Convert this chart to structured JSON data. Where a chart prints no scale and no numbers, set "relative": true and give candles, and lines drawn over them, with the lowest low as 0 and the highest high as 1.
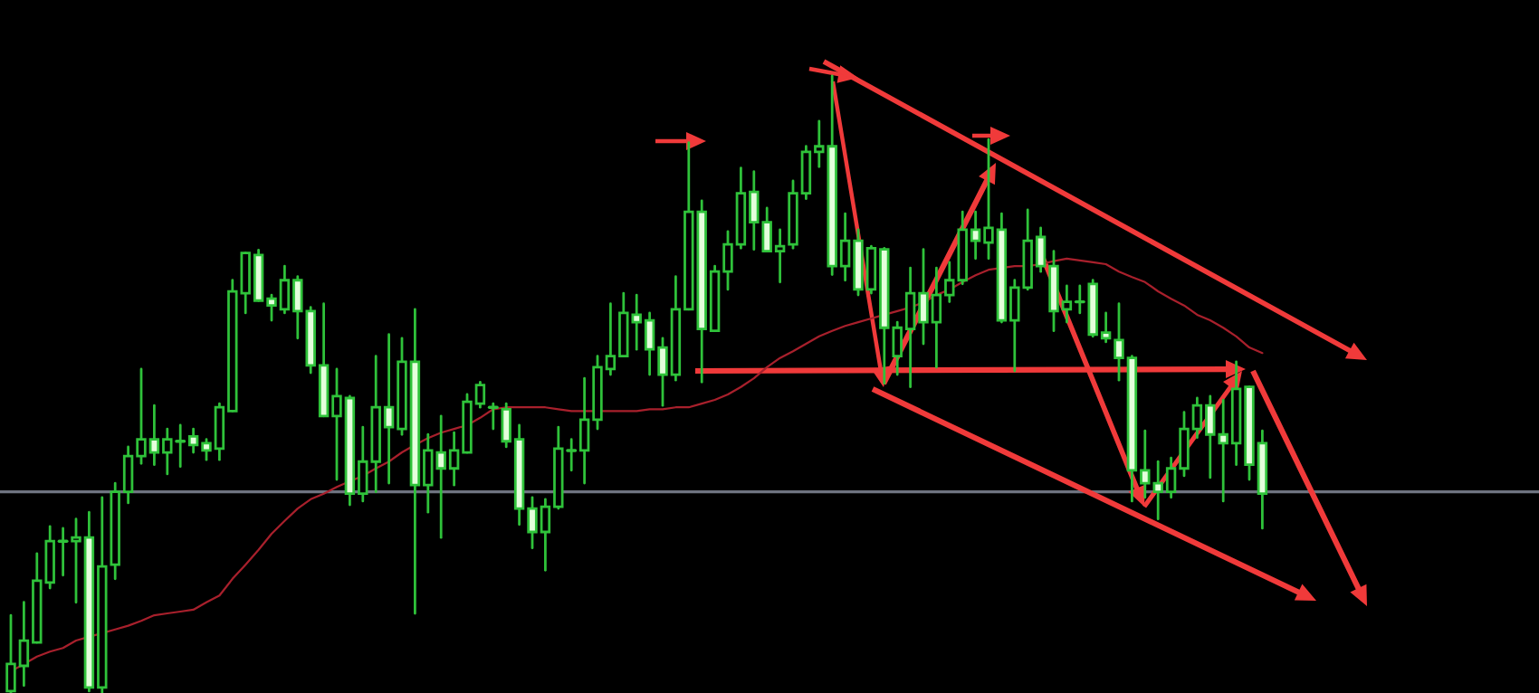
{
  "chart_data": {
    "type": "candlestick",
    "relative": true,
    "categories": [
      null,
      null,
      null,
      null,
      null,
      null,
      null,
      null,
      null,
      null,
      null,
      null,
      null,
      null,
      null,
      null,
      null,
      null,
      null,
      null,
      null,
      null,
      null,
      null,
      null,
      null,
      null,
      null,
      null,
      null,
      null,
      null,
      null,
      null,
      null,
      null,
      null,
      null,
      null,
      null,
      null,
      null,
      null,
      null,
      null,
      null,
      null,
      null,
      null,
      null,
      null,
      null,
      null,
      null,
      null,
      null,
      null,
      null,
      null,
      null,
      null,
      null,
      null,
      null,
      null,
      null,
      null,
      null,
      null,
      null,
      null,
      null,
      null,
      null,
      null,
      null,
      null,
      null,
      null,
      null,
      null,
      null,
      null,
      null,
      null,
      null,
      null,
      null,
      null,
      null,
      null,
      null,
      null,
      null,
      null,
      null,
      null
    ],
    "ohlc": [
      [
        0.003,
        0.126,
        0.0,
        0.047
      ],
      [
        0.044,
        0.147,
        0.012,
        0.085
      ],
      [
        0.082,
        0.226,
        0.082,
        0.182
      ],
      [
        0.179,
        0.27,
        0.17,
        0.246
      ],
      [
        0.246,
        0.267,
        0.191,
        0.246
      ],
      [
        0.246,
        0.282,
        0.147,
        0.252
      ],
      [
        0.252,
        0.293,
        0.003,
        0.009
      ],
      [
        0.009,
        0.317,
        0.0,
        0.205
      ],
      [
        0.208,
        0.34,
        0.185,
        0.326
      ],
      [
        0.326,
        0.399,
        0.308,
        0.384
      ],
      [
        0.384,
        0.525,
        0.372,
        0.411
      ],
      [
        0.411,
        0.466,
        0.37,
        0.39
      ],
      [
        0.39,
        0.428,
        0.355,
        0.411
      ],
      [
        0.408,
        0.434,
        0.367,
        0.408
      ],
      [
        0.416,
        0.428,
        0.39,
        0.402
      ],
      [
        0.405,
        0.411,
        0.378,
        0.393
      ],
      [
        0.396,
        0.469,
        0.378,
        0.463
      ],
      [
        0.457,
        0.669,
        0.457,
        0.651
      ],
      [
        0.648,
        0.713,
        0.616,
        0.713
      ],
      [
        0.71,
        0.718,
        0.636,
        0.636
      ],
      [
        0.639,
        0.645,
        0.604,
        0.628
      ],
      [
        0.622,
        0.692,
        0.616,
        0.669
      ],
      [
        0.669,
        0.675,
        0.575,
        0.619
      ],
      [
        0.619,
        0.625,
        0.519,
        0.531
      ],
      [
        0.531,
        0.631,
        0.449,
        0.449
      ],
      [
        0.449,
        0.525,
        0.346,
        0.481
      ],
      [
        0.478,
        0.481,
        0.305,
        0.323
      ],
      [
        0.323,
        0.431,
        0.311,
        0.375
      ],
      [
        0.375,
        0.546,
        0.326,
        0.463
      ],
      [
        0.463,
        0.581,
        0.34,
        0.431
      ],
      [
        0.428,
        0.575,
        0.419,
        0.537
      ],
      [
        0.537,
        0.622,
        0.129,
        0.337
      ],
      [
        0.337,
        0.419,
        0.293,
        0.393
      ],
      [
        0.39,
        0.449,
        0.252,
        0.364
      ],
      [
        0.364,
        0.422,
        0.337,
        0.393
      ],
      [
        0.39,
        0.484,
        0.39,
        0.472
      ],
      [
        0.469,
        0.504,
        0.463,
        0.499
      ],
      [
        0.463,
        0.469,
        0.428,
        0.463
      ],
      [
        0.46,
        0.469,
        0.399,
        0.408
      ],
      [
        0.411,
        0.434,
        0.273,
        0.299
      ],
      [
        0.299,
        0.317,
        0.235,
        0.261
      ],
      [
        0.261,
        0.314,
        0.199,
        0.302
      ],
      [
        0.302,
        0.431,
        0.299,
        0.396
      ],
      [
        0.393,
        0.411,
        0.361,
        0.393
      ],
      [
        0.393,
        0.51,
        0.34,
        0.443
      ],
      [
        0.443,
        0.546,
        0.428,
        0.528
      ],
      [
        0.525,
        0.631,
        0.516,
        0.546
      ],
      [
        0.546,
        0.648,
        0.546,
        0.616
      ],
      [
        0.613,
        0.645,
        0.557,
        0.601
      ],
      [
        0.604,
        0.616,
        0.516,
        0.557
      ],
      [
        0.56,
        0.575,
        0.466,
        0.516
      ],
      [
        0.516,
        0.675,
        0.507,
        0.622
      ],
      [
        0.622,
        0.892,
        0.622,
        0.78
      ],
      [
        0.78,
        0.798,
        0.504,
        0.59
      ],
      [
        0.587,
        0.692,
        0.587,
        0.683
      ],
      [
        0.683,
        0.748,
        0.654,
        0.727
      ],
      [
        0.727,
        0.851,
        0.721,
        0.81
      ],
      [
        0.812,
        0.845,
        0.719,
        0.763
      ],
      [
        0.763,
        0.786,
        0.716,
        0.716
      ],
      [
        0.716,
        0.751,
        0.666,
        0.724
      ],
      [
        0.727,
        0.83,
        0.721,
        0.81
      ],
      [
        0.81,
        0.886,
        0.801,
        0.877
      ],
      [
        0.877,
        0.927,
        0.853,
        0.886
      ],
      [
        0.886,
        1.0,
        0.678,
        0.692
      ],
      [
        0.692,
        0.777,
        0.669,
        0.733
      ],
      [
        0.733,
        0.751,
        0.645,
        0.654
      ],
      [
        0.654,
        0.724,
        0.648,
        0.721
      ],
      [
        0.719,
        0.721,
        0.502,
        0.592
      ],
      [
        0.546,
        0.601,
        0.516,
        0.592
      ],
      [
        0.59,
        0.689,
        0.496,
        0.648
      ],
      [
        0.648,
        0.719,
        0.566,
        0.601
      ],
      [
        0.601,
        0.689,
        0.528,
        0.645
      ],
      [
        0.645,
        0.698,
        0.634,
        0.669
      ],
      [
        0.669,
        0.78,
        0.663,
        0.751
      ],
      [
        0.751,
        0.78,
        0.704,
        0.733
      ],
      [
        0.73,
        0.897,
        0.704,
        0.754
      ],
      [
        0.751,
        0.777,
        0.601,
        0.604
      ],
      [
        0.604,
        0.669,
        0.522,
        0.657
      ],
      [
        0.657,
        0.783,
        0.654,
        0.733
      ],
      [
        0.739,
        0.754,
        0.683,
        0.692
      ],
      [
        0.692,
        0.716,
        0.587,
        0.619
      ],
      [
        0.622,
        0.66,
        0.601,
        0.634
      ],
      [
        0.634,
        0.66,
        0.616,
        0.634
      ],
      [
        0.663,
        0.669,
        0.578,
        0.581
      ],
      [
        0.584,
        0.616,
        0.569,
        0.575
      ],
      [
        0.572,
        0.631,
        0.507,
        0.543
      ],
      [
        0.543,
        0.546,
        0.311,
        0.361
      ],
      [
        0.361,
        0.425,
        0.317,
        0.34
      ],
      [
        0.34,
        0.375,
        0.282,
        0.326
      ],
      [
        0.326,
        0.381,
        0.317,
        0.364
      ],
      [
        0.364,
        0.455,
        0.352,
        0.428
      ],
      [
        0.428,
        0.478,
        0.414,
        0.466
      ],
      [
        0.466,
        0.481,
        0.349,
        0.419
      ],
      [
        0.419,
        0.475,
        0.311,
        0.405
      ],
      [
        0.405,
        0.537,
        0.37,
        0.493
      ],
      [
        0.496,
        0.496,
        0.346,
        0.37
      ],
      [
        0.405,
        0.425,
        0.267,
        0.323
      ]
    ],
    "series": [
      {
        "type": "line",
        "color": "#a8202c",
        "values": [
          0.035,
          0.047,
          0.059,
          0.067,
          0.073,
          0.085,
          0.091,
          0.097,
          0.103,
          0.109,
          0.117,
          0.126,
          0.129,
          0.132,
          0.135,
          0.147,
          0.158,
          0.185,
          0.208,
          0.232,
          0.258,
          0.279,
          0.299,
          0.314,
          0.323,
          0.334,
          0.343,
          0.352,
          0.364,
          0.375,
          0.39,
          0.402,
          0.413,
          0.422,
          0.428,
          0.434,
          0.446,
          0.46,
          0.463,
          0.463,
          0.463,
          0.463,
          0.46,
          0.457,
          0.457,
          0.457,
          0.457,
          0.457,
          0.457,
          0.46,
          0.46,
          0.463,
          0.463,
          0.469,
          0.475,
          0.484,
          0.496,
          0.51,
          0.528,
          0.543,
          0.554,
          0.566,
          0.578,
          0.587,
          0.595,
          0.601,
          0.607,
          0.613,
          0.619,
          0.625,
          0.633,
          0.645,
          0.654,
          0.666,
          0.677,
          0.686,
          0.689,
          0.692,
          0.692,
          0.695,
          0.7,
          0.704,
          0.701,
          0.698,
          0.695,
          0.683,
          0.674,
          0.666,
          0.651,
          0.639,
          0.628,
          0.613,
          0.604,
          0.592,
          0.578,
          0.56,
          0.551
        ]
      }
    ],
    "ref_lines": [
      {
        "axis": "y",
        "value": 0.326,
        "color": "#6e7380"
      }
    ]
  }
}
